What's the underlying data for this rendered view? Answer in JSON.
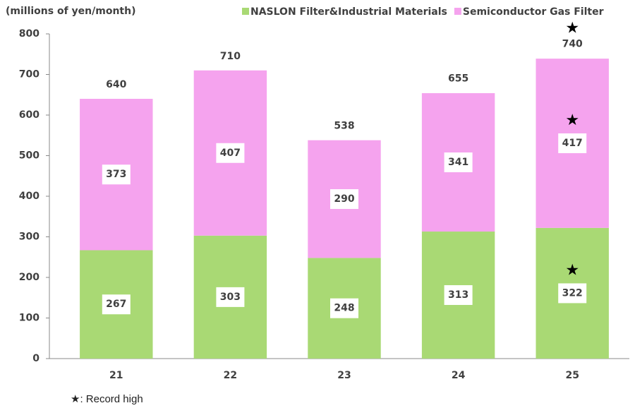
{
  "chart_data": {
    "type": "stacked_bar",
    "y_axis_label": "(millions of yen/month)",
    "categories": [
      "21",
      "22",
      "23",
      "24",
      "25"
    ],
    "series": [
      {
        "name": "NASLON Filter&Industrial Materials",
        "color": "#a9d974",
        "values": [
          267,
          303,
          248,
          313,
          322
        ],
        "record_high": [
          false,
          false,
          false,
          false,
          true
        ]
      },
      {
        "name": "Semiconductor Gas Filter",
        "color": "#f5a3ee",
        "values": [
          373,
          407,
          290,
          341,
          417
        ],
        "record_high": [
          false,
          false,
          false,
          false,
          true
        ]
      }
    ],
    "totals": [
      640,
      710,
      538,
      655,
      740
    ],
    "totals_record_high": [
      false,
      false,
      false,
      false,
      true
    ],
    "record_marker": "★",
    "footnote": "★: Record high",
    "ylim": [
      0,
      800
    ],
    "yticks": [
      0,
      100,
      200,
      300,
      400,
      500,
      600,
      700,
      800
    ],
    "grid": false,
    "legend": "top-right"
  }
}
